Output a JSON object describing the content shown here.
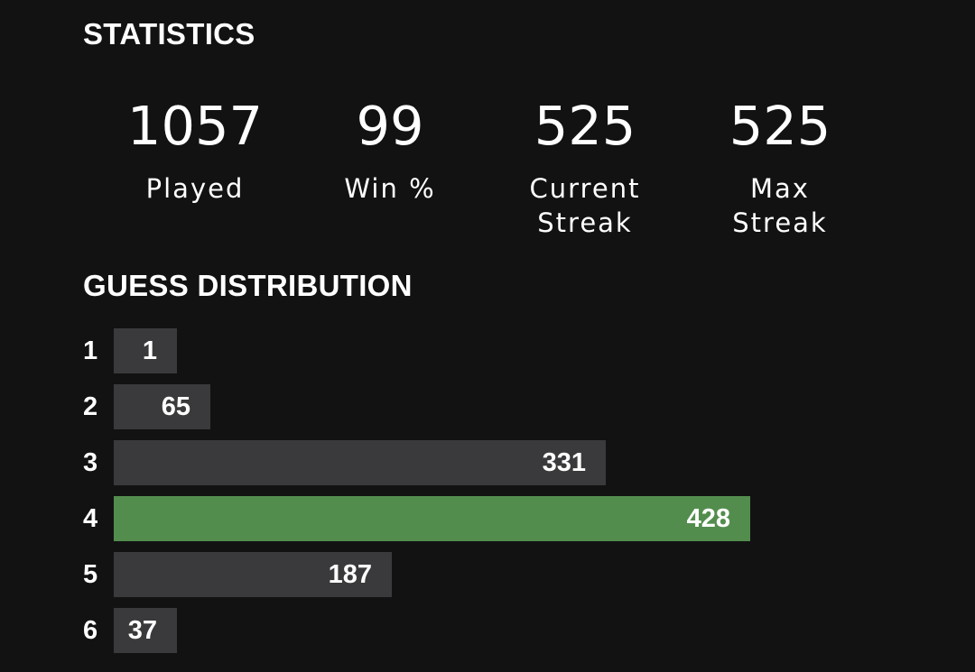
{
  "statistics": {
    "heading": "STATISTICS",
    "items": [
      {
        "value": "1057",
        "label": "Played"
      },
      {
        "value": "99",
        "label": "Win %"
      },
      {
        "value": "525",
        "label": "Current\nStreak"
      },
      {
        "value": "525",
        "label": "Max\nStreak"
      }
    ]
  },
  "distribution": {
    "heading": "GUESS DISTRIBUTION",
    "max_count": 428,
    "highlight_color": "#538d4e",
    "bar_color": "#3a3a3c",
    "rows": [
      {
        "guess": "1",
        "count": 1,
        "highlight": false
      },
      {
        "guess": "2",
        "count": 65,
        "highlight": false
      },
      {
        "guess": "3",
        "count": 331,
        "highlight": false
      },
      {
        "guess": "4",
        "count": 428,
        "highlight": true
      },
      {
        "guess": "5",
        "count": 187,
        "highlight": false
      },
      {
        "guess": "6",
        "count": 37,
        "highlight": false
      }
    ]
  }
}
